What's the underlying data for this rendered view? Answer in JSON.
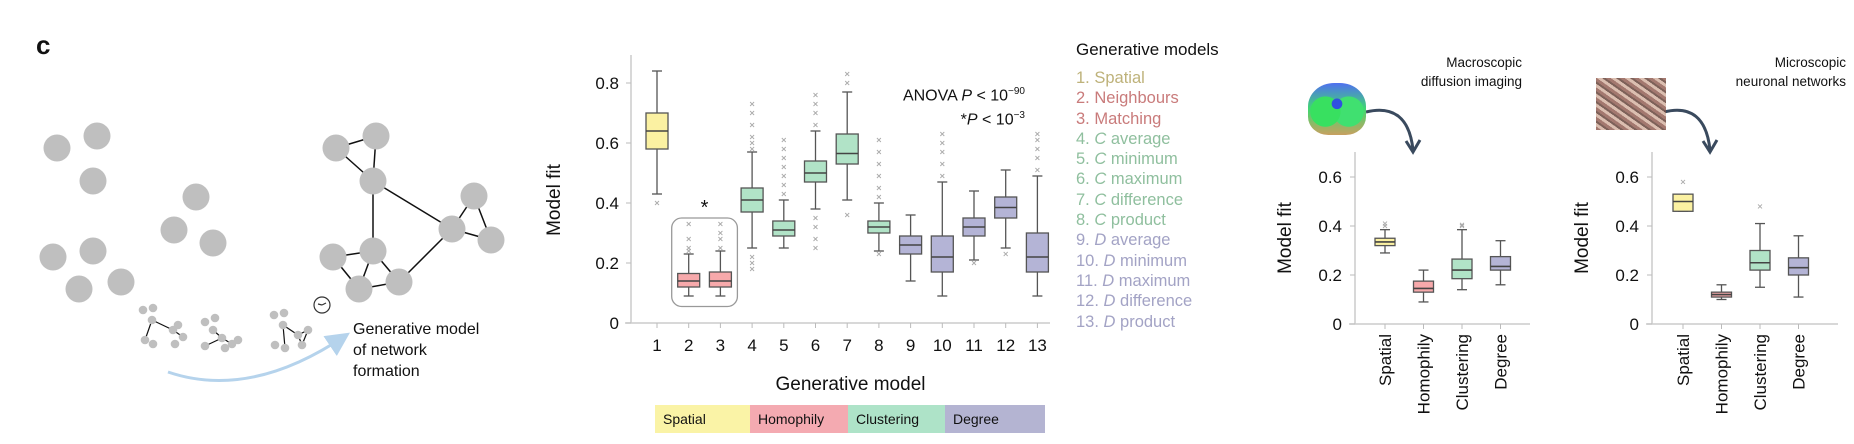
{
  "panel_label": "c",
  "network_caption": [
    "Generative model",
    "of network",
    "formation"
  ],
  "icons": {
    "timer": "clock-icon",
    "brain": "brain-tractography-image",
    "neurons": "neuronal-culture-image"
  },
  "anova": {
    "line1_prefix": "ANOVA ",
    "line1_p": "P",
    "line1_rest": " < 10",
    "line1_exp": "−90",
    "line2_prefix": "*",
    "line2_p": "P",
    "line2_rest": " < 10",
    "line2_exp": "−3"
  },
  "significance_marker": "*",
  "legend": {
    "title": "Generative models",
    "items": [
      {
        "num": "1.",
        "letter": "",
        "text": "Spatial",
        "group": "spatial"
      },
      {
        "num": "2.",
        "letter": "",
        "text": "Neighbours",
        "group": "homophily"
      },
      {
        "num": "3.",
        "letter": "",
        "text": "Matching",
        "group": "homophily"
      },
      {
        "num": "4.",
        "letter": "C",
        "text": "average",
        "group": "clustering"
      },
      {
        "num": "5.",
        "letter": "C",
        "text": "minimum",
        "group": "clustering"
      },
      {
        "num": "6.",
        "letter": "C",
        "text": "maximum",
        "group": "clustering"
      },
      {
        "num": "7.",
        "letter": "C",
        "text": "difference",
        "group": "clustering"
      },
      {
        "num": "8.",
        "letter": "C",
        "text": "product",
        "group": "clustering"
      },
      {
        "num": "9.",
        "letter": "D",
        "text": "average",
        "group": "degree"
      },
      {
        "num": "10.",
        "letter": "D",
        "text": "minimum",
        "group": "degree"
      },
      {
        "num": "11.",
        "letter": "D",
        "text": "maximum",
        "group": "degree"
      },
      {
        "num": "12.",
        "letter": "D",
        "text": "difference",
        "group": "degree"
      },
      {
        "num": "13.",
        "letter": "D",
        "text": "product",
        "group": "degree"
      }
    ]
  },
  "groups": {
    "spatial": {
      "label": "Spatial",
      "fill": "#fbf1a2",
      "text": "#beb27a",
      "bar": "#faf3a6"
    },
    "homophily": {
      "label": "Homophily",
      "fill": "#f7a9ab",
      "text": "#c97b7b",
      "bar": "#f4aab1"
    },
    "clustering": {
      "label": "Clustering",
      "fill": "#b1e3c7",
      "text": "#8fbf9e",
      "bar": "#aee3c8"
    },
    "degree": {
      "label": "Degree",
      "fill": "#b4b4d6",
      "text": "#a3a3c5",
      "bar": "#b4b4d2"
    }
  },
  "category_bar": [
    "spatial",
    "homophily",
    "clustering",
    "degree"
  ],
  "chart_data": [
    {
      "type": "box",
      "xlabel": "Generative model",
      "ylabel": "Model fit",
      "ylim": [
        0,
        0.9
      ],
      "yticks": [
        "0",
        "0.2",
        "0.4",
        "0.6",
        "0.8"
      ],
      "ytick_values": [
        0,
        0.2,
        0.4,
        0.6,
        0.8
      ],
      "categories": [
        "1",
        "2",
        "3",
        "4",
        "5",
        "6",
        "7",
        "8",
        "9",
        "10",
        "11",
        "12",
        "13"
      ],
      "boxes": [
        {
          "group": "spatial",
          "whislo": 0.43,
          "q1": 0.58,
          "med": 0.64,
          "q3": 0.7,
          "whishi": 0.84,
          "fliers": [
            0.4
          ]
        },
        {
          "group": "homophily",
          "whislo": 0.09,
          "q1": 0.12,
          "med": 0.14,
          "q3": 0.165,
          "whishi": 0.23,
          "fliers": [
            0.24,
            0.25,
            0.28,
            0.33
          ]
        },
        {
          "group": "homophily",
          "whislo": 0.09,
          "q1": 0.12,
          "med": 0.14,
          "q3": 0.17,
          "whishi": 0.24,
          "fliers": [
            0.25,
            0.28,
            0.3,
            0.33
          ]
        },
        {
          "group": "clustering",
          "whislo": 0.25,
          "q1": 0.37,
          "med": 0.41,
          "q3": 0.45,
          "whishi": 0.57,
          "fliers": [
            0.18,
            0.2,
            0.22,
            0.58,
            0.6,
            0.62,
            0.66,
            0.7,
            0.73
          ]
        },
        {
          "group": "clustering",
          "whislo": 0.25,
          "q1": 0.29,
          "med": 0.31,
          "q3": 0.34,
          "whishi": 0.41,
          "fliers": [
            0.43,
            0.46,
            0.49,
            0.52,
            0.55,
            0.58,
            0.61
          ]
        },
        {
          "group": "clustering",
          "whislo": 0.38,
          "q1": 0.47,
          "med": 0.5,
          "q3": 0.54,
          "whishi": 0.64,
          "fliers": [
            0.25,
            0.28,
            0.32,
            0.35,
            0.66,
            0.7,
            0.73,
            0.76
          ]
        },
        {
          "group": "clustering",
          "whislo": 0.41,
          "q1": 0.53,
          "med": 0.565,
          "q3": 0.63,
          "whishi": 0.77,
          "fliers": [
            0.36,
            0.8,
            0.83
          ]
        },
        {
          "group": "clustering",
          "whislo": 0.24,
          "q1": 0.3,
          "med": 0.32,
          "q3": 0.34,
          "whishi": 0.4,
          "fliers": [
            0.23,
            0.42,
            0.45,
            0.49,
            0.53,
            0.57,
            0.61
          ]
        },
        {
          "group": "degree",
          "whislo": 0.14,
          "q1": 0.23,
          "med": 0.26,
          "q3": 0.29,
          "whishi": 0.36,
          "fliers": []
        },
        {
          "group": "degree",
          "whislo": 0.09,
          "q1": 0.17,
          "med": 0.22,
          "q3": 0.29,
          "whishi": 0.47,
          "fliers": [
            0.49,
            0.53,
            0.57,
            0.6,
            0.63
          ]
        },
        {
          "group": "degree",
          "whislo": 0.21,
          "q1": 0.29,
          "med": 0.32,
          "q3": 0.35,
          "whishi": 0.44,
          "fliers": [
            0.2
          ]
        },
        {
          "group": "degree",
          "whislo": 0.25,
          "q1": 0.35,
          "med": 0.385,
          "q3": 0.42,
          "whishi": 0.51,
          "fliers": [
            0.23
          ]
        },
        {
          "group": "degree",
          "whislo": 0.09,
          "q1": 0.17,
          "med": 0.22,
          "q3": 0.3,
          "whishi": 0.49,
          "fliers": [
            0.51,
            0.55,
            0.58,
            0.61,
            0.63
          ]
        }
      ],
      "highlight_box_categories": [
        "2",
        "3"
      ]
    },
    {
      "type": "box",
      "title": [
        "Macroscopic",
        "diffusion imaging"
      ],
      "ylabel": "Model fit",
      "ylim": [
        0,
        0.68
      ],
      "yticks": [
        "0",
        "0.2",
        "0.4",
        "0.6"
      ],
      "ytick_values": [
        0,
        0.2,
        0.4,
        0.6
      ],
      "categories": [
        "Spatial",
        "Homophily",
        "Clustering",
        "Degree"
      ],
      "boxes": [
        {
          "group": "spatial",
          "whislo": 0.29,
          "q1": 0.32,
          "med": 0.335,
          "q3": 0.35,
          "whishi": 0.385,
          "fliers": [
            0.4,
            0.41
          ]
        },
        {
          "group": "homophily",
          "whislo": 0.09,
          "q1": 0.13,
          "med": 0.145,
          "q3": 0.175,
          "whishi": 0.22,
          "fliers": []
        },
        {
          "group": "clustering",
          "whislo": 0.14,
          "q1": 0.185,
          "med": 0.22,
          "q3": 0.265,
          "whishi": 0.385,
          "fliers": [
            0.4,
            0.405
          ]
        },
        {
          "group": "degree",
          "whislo": 0.16,
          "q1": 0.22,
          "med": 0.235,
          "q3": 0.275,
          "whishi": 0.34,
          "fliers": []
        }
      ]
    },
    {
      "type": "box",
      "title": [
        "Microscopic",
        "neuronal networks"
      ],
      "ylabel": "Model fit",
      "ylim": [
        0,
        0.68
      ],
      "yticks": [
        "0",
        "0.2",
        "0.4",
        "0.6"
      ],
      "ytick_values": [
        0,
        0.2,
        0.4,
        0.6
      ],
      "categories": [
        "Spatial",
        "Homophily",
        "Clustering",
        "Degree"
      ],
      "boxes": [
        {
          "group": "spatial",
          "whislo": 0.46,
          "q1": 0.46,
          "med": 0.5,
          "q3": 0.53,
          "whishi": 0.53,
          "fliers": [
            0.58
          ]
        },
        {
          "group": "homophily",
          "whislo": 0.1,
          "q1": 0.11,
          "med": 0.12,
          "q3": 0.13,
          "whishi": 0.16,
          "fliers": []
        },
        {
          "group": "clustering",
          "whislo": 0.15,
          "q1": 0.22,
          "med": 0.25,
          "q3": 0.3,
          "whishi": 0.41,
          "fliers": [
            0.48
          ]
        },
        {
          "group": "degree",
          "whislo": 0.11,
          "q1": 0.2,
          "med": 0.23,
          "q3": 0.27,
          "whishi": 0.36,
          "fliers": []
        }
      ]
    }
  ]
}
